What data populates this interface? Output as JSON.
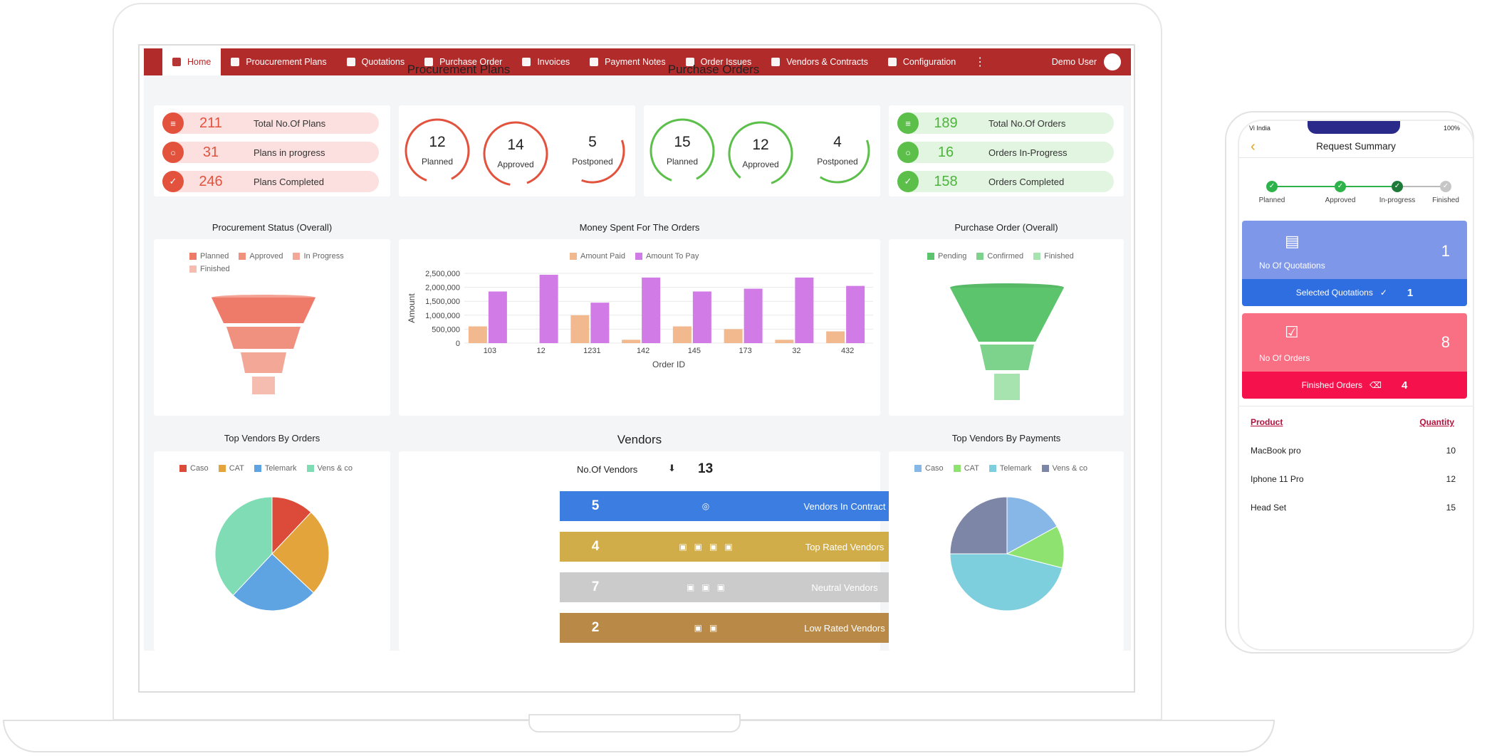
{
  "nav": {
    "items": [
      {
        "label": "Home",
        "icon": "home-icon"
      },
      {
        "label": "Proucurement Plans",
        "icon": "chart-icon"
      },
      {
        "label": "Quotations",
        "icon": "document-icon"
      },
      {
        "label": "Purchase Order",
        "icon": "truck-icon"
      },
      {
        "label": "Invoices",
        "icon": "invoice-icon"
      },
      {
        "label": "Payment Notes",
        "icon": "wallet-icon"
      },
      {
        "label": "Order Issues",
        "icon": "bug-icon"
      },
      {
        "label": "Vendors & Contracts",
        "icon": "user-icon"
      },
      {
        "label": "Configuration",
        "icon": "gear-icon"
      }
    ],
    "more": "⋮",
    "user": "Demo User"
  },
  "procurement_plans": {
    "title": "Procurement Plans",
    "pills": [
      {
        "value": "211",
        "label": "Total No.Of Plans"
      },
      {
        "value": "31",
        "label": "Plans in progress"
      },
      {
        "value": "246",
        "label": "Plans Completed"
      }
    ],
    "rings": [
      {
        "value": "12",
        "label": "Planned"
      },
      {
        "value": "14",
        "label": "Approved"
      },
      {
        "value": "5",
        "label": "Postponed"
      }
    ]
  },
  "purchase_orders": {
    "title": "Purchase Orders",
    "rings": [
      {
        "value": "15",
        "label": "Planned"
      },
      {
        "value": "12",
        "label": "Approved"
      },
      {
        "value": "4",
        "label": "Postponed"
      }
    ],
    "pills": [
      {
        "value": "189",
        "label": "Total No.Of Orders"
      },
      {
        "value": "16",
        "label": "Orders In-Progress"
      },
      {
        "value": "158",
        "label": "Orders Completed"
      }
    ]
  },
  "procurement_status": {
    "title": "Procurement Status (Overall)",
    "legend": [
      {
        "label": "Planned",
        "color": "#ee7b6a"
      },
      {
        "label": "Approved",
        "color": "#f0917f"
      },
      {
        "label": "In Progress",
        "color": "#f3a797"
      },
      {
        "label": "Finished",
        "color": "#f5bcb0"
      }
    ]
  },
  "purchase_order_overall": {
    "title": "Purchase Order (Overall)",
    "legend": [
      {
        "label": "Pending",
        "color": "#5cc46c"
      },
      {
        "label": "Confirmed",
        "color": "#7dd38b"
      },
      {
        "label": "Finished",
        "color": "#a6e3ae"
      }
    ]
  },
  "chart_data": [
    {
      "type": "bar",
      "title": "Money Spent For The Orders",
      "xlabel": "Order ID",
      "ylabel": "Amount",
      "categories": [
        "103",
        "12",
        "1231",
        "142",
        "145",
        "173",
        "32",
        "432"
      ],
      "series": [
        {
          "name": "Amount Paid",
          "color": "#f2b98f",
          "values": [
            600000,
            0,
            1000000,
            120000,
            600000,
            500000,
            120000,
            420000
          ]
        },
        {
          "name": "Amount To Pay",
          "color": "#d07be6",
          "values": [
            1850000,
            2450000,
            1450000,
            2350000,
            1850000,
            1950000,
            2350000,
            2050000
          ]
        }
      ],
      "ylim": [
        0,
        2500000
      ],
      "yticks": [
        "0",
        "500,000",
        "1,000,000",
        "1,500,000",
        "2,000,000",
        "2,500,000"
      ],
      "grid": true,
      "legend": "top"
    },
    {
      "type": "pie",
      "title": "Top Vendors By Orders",
      "labels": [
        "Caso",
        "CAT",
        "Telemark",
        "Vens & co"
      ],
      "values": [
        12,
        25,
        25,
        38
      ],
      "colors": [
        "#dc4a3a",
        "#e3a43c",
        "#5ea3e2",
        "#7fdcb4"
      ],
      "legend": "top"
    },
    {
      "type": "pie",
      "title": "Top Vendors By Payments",
      "labels": [
        "Caso",
        "CAT",
        "Telemark",
        "Vens & co"
      ],
      "values": [
        17,
        12,
        46,
        25
      ],
      "colors": [
        "#86b7e6",
        "#8ee26f",
        "#7ecfdd",
        "#7d86a6"
      ],
      "legend": "top"
    }
  ],
  "vendors": {
    "title": "Vendors",
    "count_label": "No.Of Vendors",
    "count": "13",
    "rows": [
      {
        "value": "5",
        "icons": "◎",
        "label": "Vendors In Contract",
        "color": "#3b7de0"
      },
      {
        "value": "4",
        "icons": "▣▣▣▣",
        "label": "Top Rated Vendors",
        "color": "#d1ad4a"
      },
      {
        "value": "7",
        "icons": "▣▣▣",
        "label": "Neutral Vendors",
        "color": "#cbcbcb"
      },
      {
        "value": "2",
        "icons": "▣▣",
        "label": "Low Rated Vendors",
        "color": "#b98a47"
      }
    ]
  },
  "phone": {
    "status_left": "Vi India",
    "status_right": "100%",
    "title": "Request Summary",
    "steps": [
      "Planned",
      "Approved",
      "In-progress",
      "Finished"
    ],
    "quotations": {
      "label": "No Of Quotations",
      "value": "1",
      "footer": "Selected Quotations",
      "footer_value": "1"
    },
    "orders": {
      "label": "No Of Orders",
      "value": "8",
      "footer": "Finished Orders",
      "footer_value": "4"
    },
    "table": {
      "headers": [
        "Product",
        "Quantity"
      ],
      "rows": [
        {
          "product": "MacBook pro",
          "qty": "10"
        },
        {
          "product": "Iphone 11 Pro",
          "qty": "12"
        },
        {
          "product": "Head Set",
          "qty": "15"
        }
      ]
    }
  }
}
